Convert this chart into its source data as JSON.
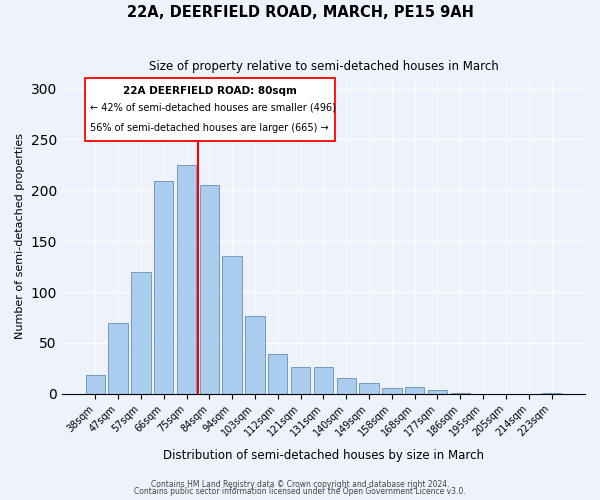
{
  "title": "22A, DEERFIELD ROAD, MARCH, PE15 9AH",
  "subtitle": "Size of property relative to semi-detached houses in March",
  "xlabel": "Distribution of semi-detached houses by size in March",
  "ylabel": "Number of semi-detached properties",
  "bar_labels": [
    "38sqm",
    "47sqm",
    "57sqm",
    "66sqm",
    "75sqm",
    "84sqm",
    "94sqm",
    "103sqm",
    "112sqm",
    "121sqm",
    "131sqm",
    "140sqm",
    "149sqm",
    "158sqm",
    "168sqm",
    "177sqm",
    "186sqm",
    "195sqm",
    "205sqm",
    "214sqm",
    "223sqm"
  ],
  "bar_values": [
    18,
    70,
    120,
    209,
    225,
    205,
    135,
    76,
    39,
    26,
    26,
    15,
    11,
    6,
    7,
    4,
    1,
    0,
    0,
    0,
    1
  ],
  "bar_color": "#aaccee",
  "bar_edge_color": "#7799bb",
  "vline_x": 4.5,
  "vline_color": "red",
  "annotation_title": "22A DEERFIELD ROAD: 80sqm",
  "annotation_line1": "← 42% of semi-detached houses are smaller (496)",
  "annotation_line2": "56% of semi-detached houses are larger (665) →",
  "footer1": "Contains HM Land Registry data © Crown copyright and database right 2024.",
  "footer2": "Contains public sector information licensed under the Open Government Licence v3.0.",
  "ylim": [
    0,
    310
  ],
  "yticks": [
    0,
    50,
    100,
    150,
    200,
    250,
    300
  ],
  "background_color": "#eef2fb"
}
